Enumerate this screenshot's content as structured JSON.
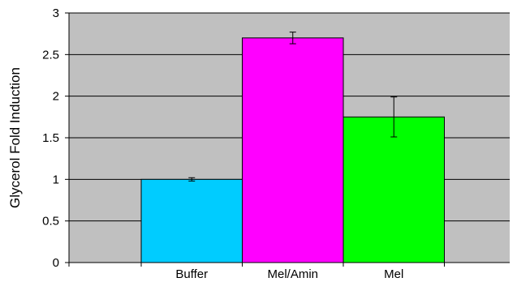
{
  "chart_data": {
    "type": "bar",
    "categories": [
      "Buffer",
      "Mel/Amin",
      "Mel"
    ],
    "values": [
      1.0,
      2.7,
      1.75
    ],
    "error": [
      0.02,
      0.07,
      0.24
    ],
    "colors": [
      "#00ccff",
      "#ff00ff",
      "#00ff00"
    ],
    "title": "",
    "xlabel": "",
    "ylabel": "Glycerol Fold Induction",
    "ylim": [
      0,
      3
    ],
    "yticks": [
      0,
      0.5,
      1,
      1.5,
      2,
      2.5,
      3
    ],
    "ytick_labels": [
      "0",
      "0.5",
      "1",
      "1.5",
      "2",
      "2.5",
      "3"
    ],
    "grid": true,
    "plot_background": "#c0c0c0",
    "legend": "none"
  }
}
